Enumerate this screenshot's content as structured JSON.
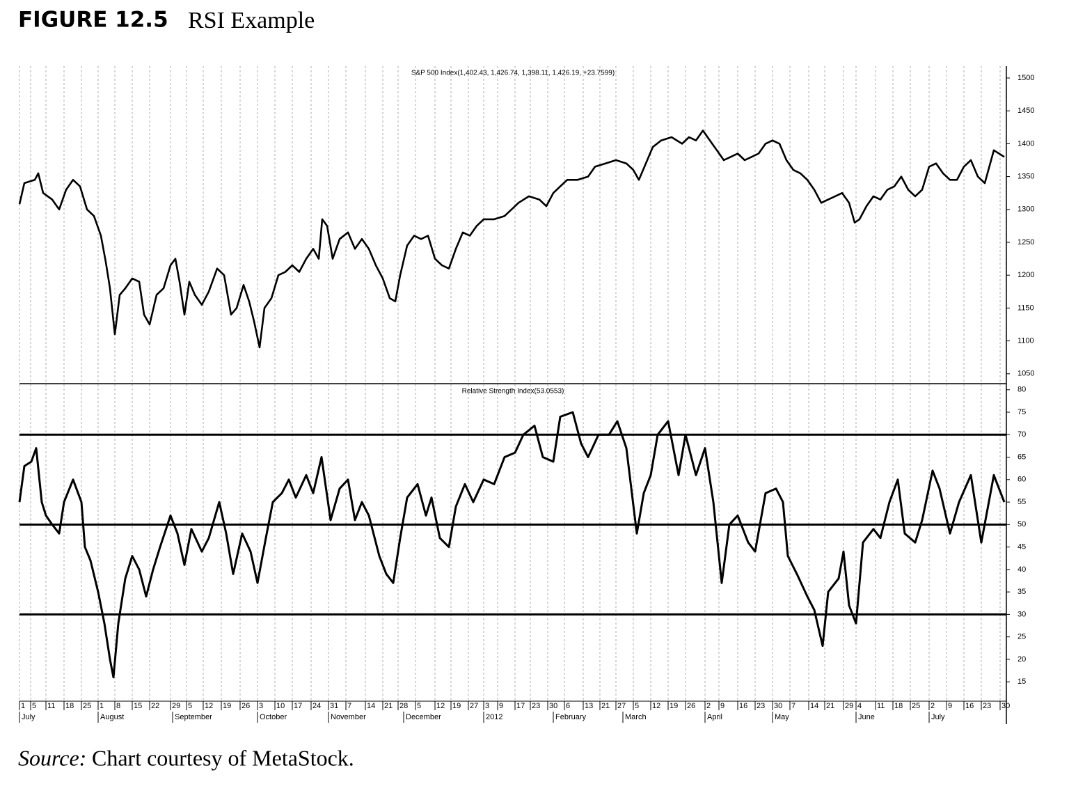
{
  "figure": {
    "label": "FIGURE 12.5",
    "title": "RSI Example"
  },
  "chart_data": [
    {
      "type": "line",
      "title": "S&P 500 Index(1,402.43, 1,426.74, 1,398.11, 1,426.19, +23.7599)",
      "color": "#000000",
      "x": [
        0,
        1.4,
        4.4,
        5.4,
        6.8,
        9.4,
        11.4,
        13.4,
        15.4,
        17.4,
        19.4,
        21.4,
        23.4,
        24.8,
        26,
        27.4,
        28.8,
        30.4,
        32.4,
        34.4,
        35.8,
        37.4,
        39.4,
        41.4,
        43.4,
        44.8,
        46,
        47.4,
        48.8,
        50.4,
        52.4,
        54.4,
        56.8,
        58.8,
        60.8,
        62.4,
        64.4,
        66,
        67.4,
        69,
        70.4,
        72.4,
        74.4,
        76.4,
        78.4,
        80.4,
        82.4,
        84.4,
        86,
        87,
        88.4,
        90,
        92,
        94.4,
        96.4,
        98.4,
        100.4,
        102.4,
        104.4,
        106.4,
        108,
        109.4,
        111.4,
        113.4,
        115.4,
        117.4,
        119.4,
        121.4,
        123.4,
        125.4,
        127.4,
        129.4,
        131.4,
        133.4,
        136.4,
        139.4,
        141.4,
        143.4,
        146.4,
        149.4,
        151.4,
        153.4,
        155.4,
        157.4,
        160.4,
        163.4,
        165.4,
        168.4,
        171.4,
        174.4,
        176.4,
        178,
        180,
        182,
        184.4,
        187.4,
        190.4,
        192.4,
        194.4,
        196.4,
        198.4,
        200.4,
        202.4,
        204.4,
        206.4,
        208.4,
        210.4,
        212.4,
        214.4,
        216.4,
        218.4,
        220.4,
        222.4,
        224.4,
        226.4,
        228.4,
        230.4,
        232.4,
        234.4,
        236.4,
        238.4,
        240,
        241.4,
        243.4,
        245.4,
        247.4,
        249.4,
        251.4,
        253.4,
        255.4,
        257.4,
        259.4,
        261.4,
        263.4,
        265.4,
        267.4,
        269.4,
        271.4,
        273.4,
        275.4,
        277.4,
        280,
        283
      ],
      "values": [
        1308,
        1340,
        1345,
        1355,
        1325,
        1315,
        1300,
        1330,
        1345,
        1335,
        1300,
        1290,
        1260,
        1220,
        1180,
        1110,
        1170,
        1180,
        1195,
        1190,
        1140,
        1125,
        1170,
        1180,
        1215,
        1225,
        1190,
        1140,
        1190,
        1170,
        1155,
        1175,
        1210,
        1200,
        1140,
        1150,
        1185,
        1160,
        1130,
        1090,
        1150,
        1165,
        1200,
        1205,
        1215,
        1205,
        1225,
        1240,
        1225,
        1285,
        1275,
        1225,
        1255,
        1265,
        1240,
        1255,
        1240,
        1215,
        1195,
        1165,
        1160,
        1200,
        1245,
        1260,
        1255,
        1260,
        1225,
        1215,
        1210,
        1240,
        1265,
        1260,
        1275,
        1285,
        1285,
        1290,
        1300,
        1310,
        1320,
        1315,
        1305,
        1325,
        1335,
        1345,
        1345,
        1350,
        1365,
        1370,
        1375,
        1370,
        1360,
        1345,
        1370,
        1395,
        1405,
        1410,
        1400,
        1410,
        1405,
        1420,
        1405,
        1390,
        1375,
        1380,
        1385,
        1375,
        1380,
        1385,
        1400,
        1405,
        1400,
        1375,
        1360,
        1355,
        1345,
        1330,
        1310,
        1315,
        1320,
        1325,
        1310,
        1280,
        1285,
        1305,
        1320,
        1315,
        1330,
        1335,
        1350,
        1330,
        1320,
        1330,
        1365,
        1370,
        1355,
        1345,
        1345,
        1365,
        1375,
        1350,
        1340,
        1390,
        1380
      ],
      "xlim": [
        0,
        283.6
      ],
      "ylim": [
        1036,
        1518
      ],
      "yticks": [
        1050,
        1100,
        1150,
        1200,
        1250,
        1300,
        1350,
        1400,
        1450,
        1500
      ],
      "grid": true
    },
    {
      "type": "line",
      "title": "Relative Strength Index(53.0553)",
      "color": "#000000",
      "x": [
        0,
        1.4,
        3.4,
        4.8,
        6.4,
        7.6,
        9.4,
        11.4,
        12.8,
        15.4,
        17.8,
        18.8,
        20.4,
        22.6,
        24.4,
        26,
        27,
        28.4,
        30.4,
        32.4,
        34.4,
        36.4,
        38.4,
        40.4,
        43.4,
        45.4,
        47.4,
        49.4,
        52.4,
        54.4,
        57.4,
        59.4,
        61.4,
        64,
        66.4,
        68.4,
        70.8,
        72.8,
        75.4,
        77.4,
        79.4,
        82.4,
        84.4,
        86.8,
        89.4,
        92,
        94.4,
        96.4,
        98.4,
        100.4,
        103.4,
        105.4,
        107.4,
        109.4,
        111.4,
        114.4,
        116.8,
        118.4,
        120.8,
        123.4,
        125.4,
        128,
        130.4,
        133.4,
        136.4,
        139.4,
        142.4,
        144.8,
        148,
        150.4,
        153.4,
        155.4,
        159,
        161.4,
        163.4,
        166.4,
        169.4,
        171.8,
        174.4,
        177.4,
        179.4,
        181.4,
        183.4,
        186.4,
        189.4,
        191.4,
        194.4,
        197,
        199.4,
        201.8,
        204,
        206.4,
        209.4,
        211.4,
        214.4,
        217.4,
        219.4,
        220.8,
        223.4,
        226.4,
        228.4,
        230.8,
        232.4,
        235.4,
        236.8,
        238.4,
        240.4,
        242.4,
        245.4,
        247.4,
        250,
        252.4,
        254.4,
        257.4,
        259.4,
        262.4,
        264.4,
        267.4,
        270,
        273.4,
        276.4,
        280,
        283
      ],
      "values": [
        55,
        63,
        64,
        67,
        55,
        52,
        50,
        48,
        55,
        60,
        55,
        45,
        42,
        35,
        28,
        20,
        16,
        28,
        38,
        43,
        40,
        34,
        40,
        45,
        52,
        48,
        41,
        49,
        44,
        47,
        55,
        48,
        39,
        48,
        44,
        37,
        47,
        55,
        57,
        60,
        56,
        61,
        57,
        65,
        51,
        58,
        60,
        51,
        55,
        52,
        43,
        39,
        37,
        47,
        56,
        59,
        52,
        56,
        47,
        45,
        54,
        59,
        55,
        60,
        59,
        65,
        66,
        70,
        72,
        65,
        64,
        74,
        75,
        68,
        65,
        70,
        70,
        73,
        67,
        48,
        57,
        61,
        70,
        73,
        61,
        70,
        61,
        67,
        55,
        37,
        50,
        52,
        46,
        44,
        57,
        58,
        55,
        43,
        39,
        34,
        31,
        23,
        35,
        38,
        44,
        32,
        28,
        46,
        49,
        47,
        55,
        60,
        48,
        46,
        51,
        62,
        58,
        48,
        55,
        61,
        46,
        61,
        55
      ],
      "xlim": [
        0,
        283.6
      ],
      "ylim": [
        11,
        81.2
      ],
      "yticks": [
        15,
        20,
        25,
        30,
        35,
        40,
        45,
        50,
        55,
        60,
        65,
        70,
        75,
        80
      ],
      "hlines": [
        30,
        50,
        70
      ],
      "grid": true,
      "xticks": [
        {
          "value": 0,
          "label": "1"
        },
        {
          "value": 3.2,
          "label": "5"
        },
        {
          "value": 7.6,
          "label": "11"
        },
        {
          "value": 12.8,
          "label": "18"
        },
        {
          "value": 17.8,
          "label": "25"
        },
        {
          "value": 22.6,
          "label": "1"
        },
        {
          "value": 27.4,
          "label": "8"
        },
        {
          "value": 32.4,
          "label": "15"
        },
        {
          "value": 37.4,
          "label": "22"
        },
        {
          "value": 43.4,
          "label": "29"
        },
        {
          "value": 48,
          "label": "5"
        },
        {
          "value": 52.8,
          "label": "12"
        },
        {
          "value": 58,
          "label": "19"
        },
        {
          "value": 63.4,
          "label": "26"
        },
        {
          "value": 68.4,
          "label": "3"
        },
        {
          "value": 73.4,
          "label": "10"
        },
        {
          "value": 78.4,
          "label": "17"
        },
        {
          "value": 83.8,
          "label": "24"
        },
        {
          "value": 88.8,
          "label": "31"
        },
        {
          "value": 93.8,
          "label": "7"
        },
        {
          "value": 99.4,
          "label": "14"
        },
        {
          "value": 104.4,
          "label": "21"
        },
        {
          "value": 108.8,
          "label": "28"
        },
        {
          "value": 113.8,
          "label": "5"
        },
        {
          "value": 119.4,
          "label": "12"
        },
        {
          "value": 124,
          "label": "19"
        },
        {
          "value": 129,
          "label": "27"
        },
        {
          "value": 133.4,
          "label": "3"
        },
        {
          "value": 137.4,
          "label": "9"
        },
        {
          "value": 142.4,
          "label": "17"
        },
        {
          "value": 146.8,
          "label": "23"
        },
        {
          "value": 151.8,
          "label": "30"
        },
        {
          "value": 156.6,
          "label": "6"
        },
        {
          "value": 162,
          "label": "13"
        },
        {
          "value": 166.8,
          "label": "21"
        },
        {
          "value": 171.4,
          "label": "27"
        },
        {
          "value": 176.4,
          "label": "5"
        },
        {
          "value": 181.4,
          "label": "12"
        },
        {
          "value": 186.4,
          "label": "19"
        },
        {
          "value": 191.4,
          "label": "26"
        },
        {
          "value": 197,
          "label": "2"
        },
        {
          "value": 201,
          "label": "9"
        },
        {
          "value": 206.4,
          "label": "16"
        },
        {
          "value": 211.4,
          "label": "23"
        },
        {
          "value": 216.4,
          "label": "30"
        },
        {
          "value": 221.4,
          "label": "7"
        },
        {
          "value": 226.8,
          "label": "14"
        },
        {
          "value": 231.4,
          "label": "21"
        },
        {
          "value": 236.8,
          "label": "29"
        },
        {
          "value": 240.4,
          "label": "4"
        },
        {
          "value": 246,
          "label": "11"
        },
        {
          "value": 251,
          "label": "18"
        },
        {
          "value": 256,
          "label": "25"
        },
        {
          "value": 261.4,
          "label": "2"
        },
        {
          "value": 266.4,
          "label": "9"
        },
        {
          "value": 271.4,
          "label": "16"
        },
        {
          "value": 276.4,
          "label": "23"
        },
        {
          "value": 281.8,
          "label": "30"
        }
      ],
      "month_ticks": [
        {
          "value": 0,
          "label": "July"
        },
        {
          "value": 22.6,
          "label": "August"
        },
        {
          "value": 44,
          "label": "September"
        },
        {
          "value": 68.4,
          "label": "October"
        },
        {
          "value": 88.8,
          "label": "November"
        },
        {
          "value": 110.4,
          "label": "December"
        },
        {
          "value": 133.4,
          "label": "2012"
        },
        {
          "value": 153.4,
          "label": "February"
        },
        {
          "value": 173.4,
          "label": "March"
        },
        {
          "value": 197,
          "label": "April"
        },
        {
          "value": 216.4,
          "label": "May"
        },
        {
          "value": 240.4,
          "label": "June"
        },
        {
          "value": 261.4,
          "label": "July"
        }
      ]
    }
  ],
  "source": {
    "label": "Source:",
    "text": "Chart courtesy of MetaStock."
  }
}
